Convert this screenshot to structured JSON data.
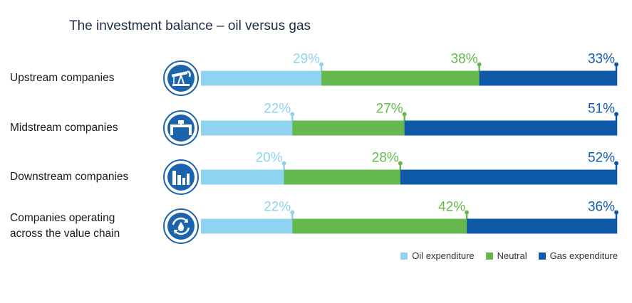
{
  "chart_data": {
    "type": "bar",
    "stacked": true,
    "orientation": "horizontal",
    "title": "The investment balance – oil versus gas",
    "categories": [
      "Upstream companies",
      "Midstream companies",
      "Downstream companies",
      "Companies operating across the value chain"
    ],
    "category_lines": [
      [
        "Upstream companies"
      ],
      [
        "Midstream companies"
      ],
      [
        "Downstream companies"
      ],
      [
        "Companies operating",
        "across the value chain"
      ]
    ],
    "category_icons": [
      "oil-pump-icon",
      "pipeline-icon",
      "refinery-icon",
      "value-chain-cycle-icon"
    ],
    "series": [
      {
        "name": "Oil expenditure",
        "values": [
          29,
          22,
          20,
          22
        ],
        "color": "#8fd3f0"
      },
      {
        "name": "Neutral",
        "values": [
          38,
          27,
          28,
          42
        ],
        "color": "#66b94e"
      },
      {
        "name": "Gas expenditure",
        "values": [
          33,
          51,
          52,
          36
        ],
        "color": "#0f5aa8"
      }
    ],
    "value_suffix": "%",
    "xlim": [
      0,
      100
    ],
    "legend_position": "bottom-right"
  }
}
